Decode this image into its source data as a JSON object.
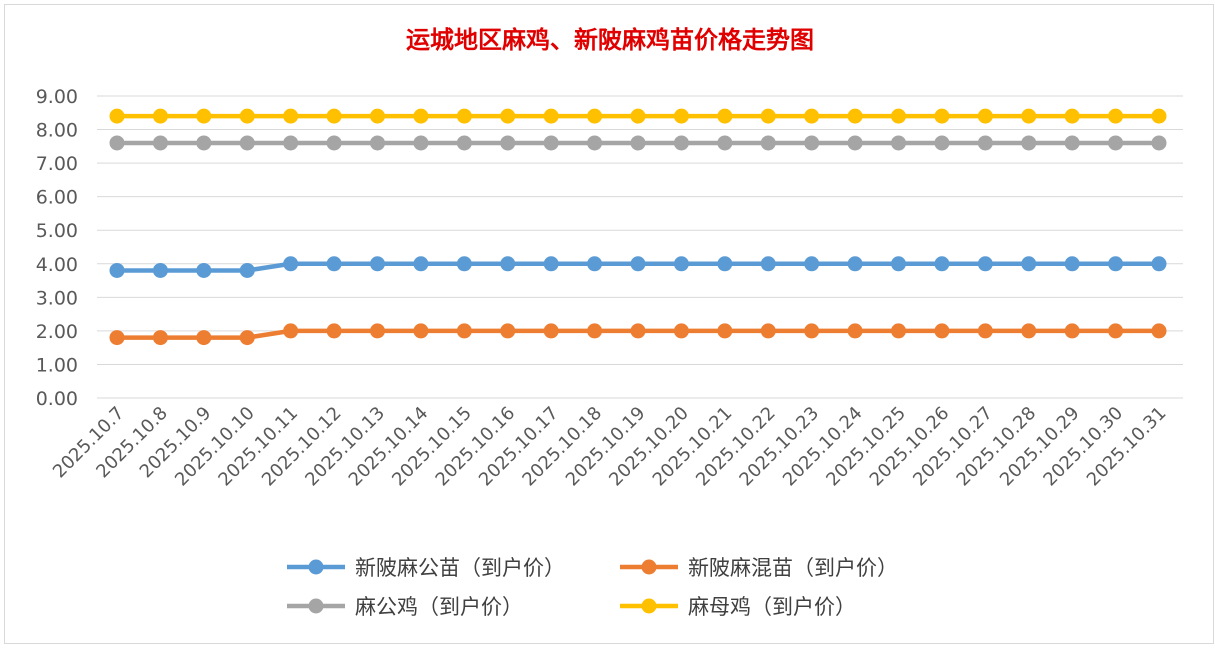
{
  "chart_data": {
    "type": "line",
    "title": "运城地区麻鸡、新陂麻鸡苗价格走势图",
    "xlabel": "",
    "ylabel": "",
    "ylim": [
      0,
      9
    ],
    "ytick_step": 1,
    "ytick_format_decimals": 2,
    "grid": true,
    "legend_position": "bottom",
    "markers": "circle",
    "categories": [
      "2025.10.7",
      "2025.10.8",
      "2025.10.9",
      "2025.10.10",
      "2025.10.11",
      "2025.10.12",
      "2025.10.13",
      "2025.10.14",
      "2025.10.15",
      "2025.10.16",
      "2025.10.17",
      "2025.10.18",
      "2025.10.19",
      "2025.10.20",
      "2025.10.21",
      "2025.10.22",
      "2025.10.23",
      "2025.10.24",
      "2025.10.25",
      "2025.10.26",
      "2025.10.27",
      "2025.10.28",
      "2025.10.29",
      "2025.10.30",
      "2025.10.31"
    ],
    "series": [
      {
        "name": "新陂麻公苗（到户价）",
        "color": "#5b9bd5",
        "values": [
          3.8,
          3.8,
          3.8,
          3.8,
          4.0,
          4.0,
          4.0,
          4.0,
          4.0,
          4.0,
          4.0,
          4.0,
          4.0,
          4.0,
          4.0,
          4.0,
          4.0,
          4.0,
          4.0,
          4.0,
          4.0,
          4.0,
          4.0,
          4.0,
          4.0
        ]
      },
      {
        "name": "新陂麻混苗（到户价）",
        "color": "#ed7d31",
        "values": [
          1.8,
          1.8,
          1.8,
          1.8,
          2.0,
          2.0,
          2.0,
          2.0,
          2.0,
          2.0,
          2.0,
          2.0,
          2.0,
          2.0,
          2.0,
          2.0,
          2.0,
          2.0,
          2.0,
          2.0,
          2.0,
          2.0,
          2.0,
          2.0,
          2.0
        ]
      },
      {
        "name": "麻公鸡（到户价）",
        "color": "#a5a5a5",
        "values": [
          7.6,
          7.6,
          7.6,
          7.6,
          7.6,
          7.6,
          7.6,
          7.6,
          7.6,
          7.6,
          7.6,
          7.6,
          7.6,
          7.6,
          7.6,
          7.6,
          7.6,
          7.6,
          7.6,
          7.6,
          7.6,
          7.6,
          7.6,
          7.6,
          7.6
        ]
      },
      {
        "name": "麻母鸡（到户价）",
        "color": "#ffc000",
        "values": [
          8.4,
          8.4,
          8.4,
          8.4,
          8.4,
          8.4,
          8.4,
          8.4,
          8.4,
          8.4,
          8.4,
          8.4,
          8.4,
          8.4,
          8.4,
          8.4,
          8.4,
          8.4,
          8.4,
          8.4,
          8.4,
          8.4,
          8.4,
          8.4,
          8.4
        ]
      }
    ]
  }
}
